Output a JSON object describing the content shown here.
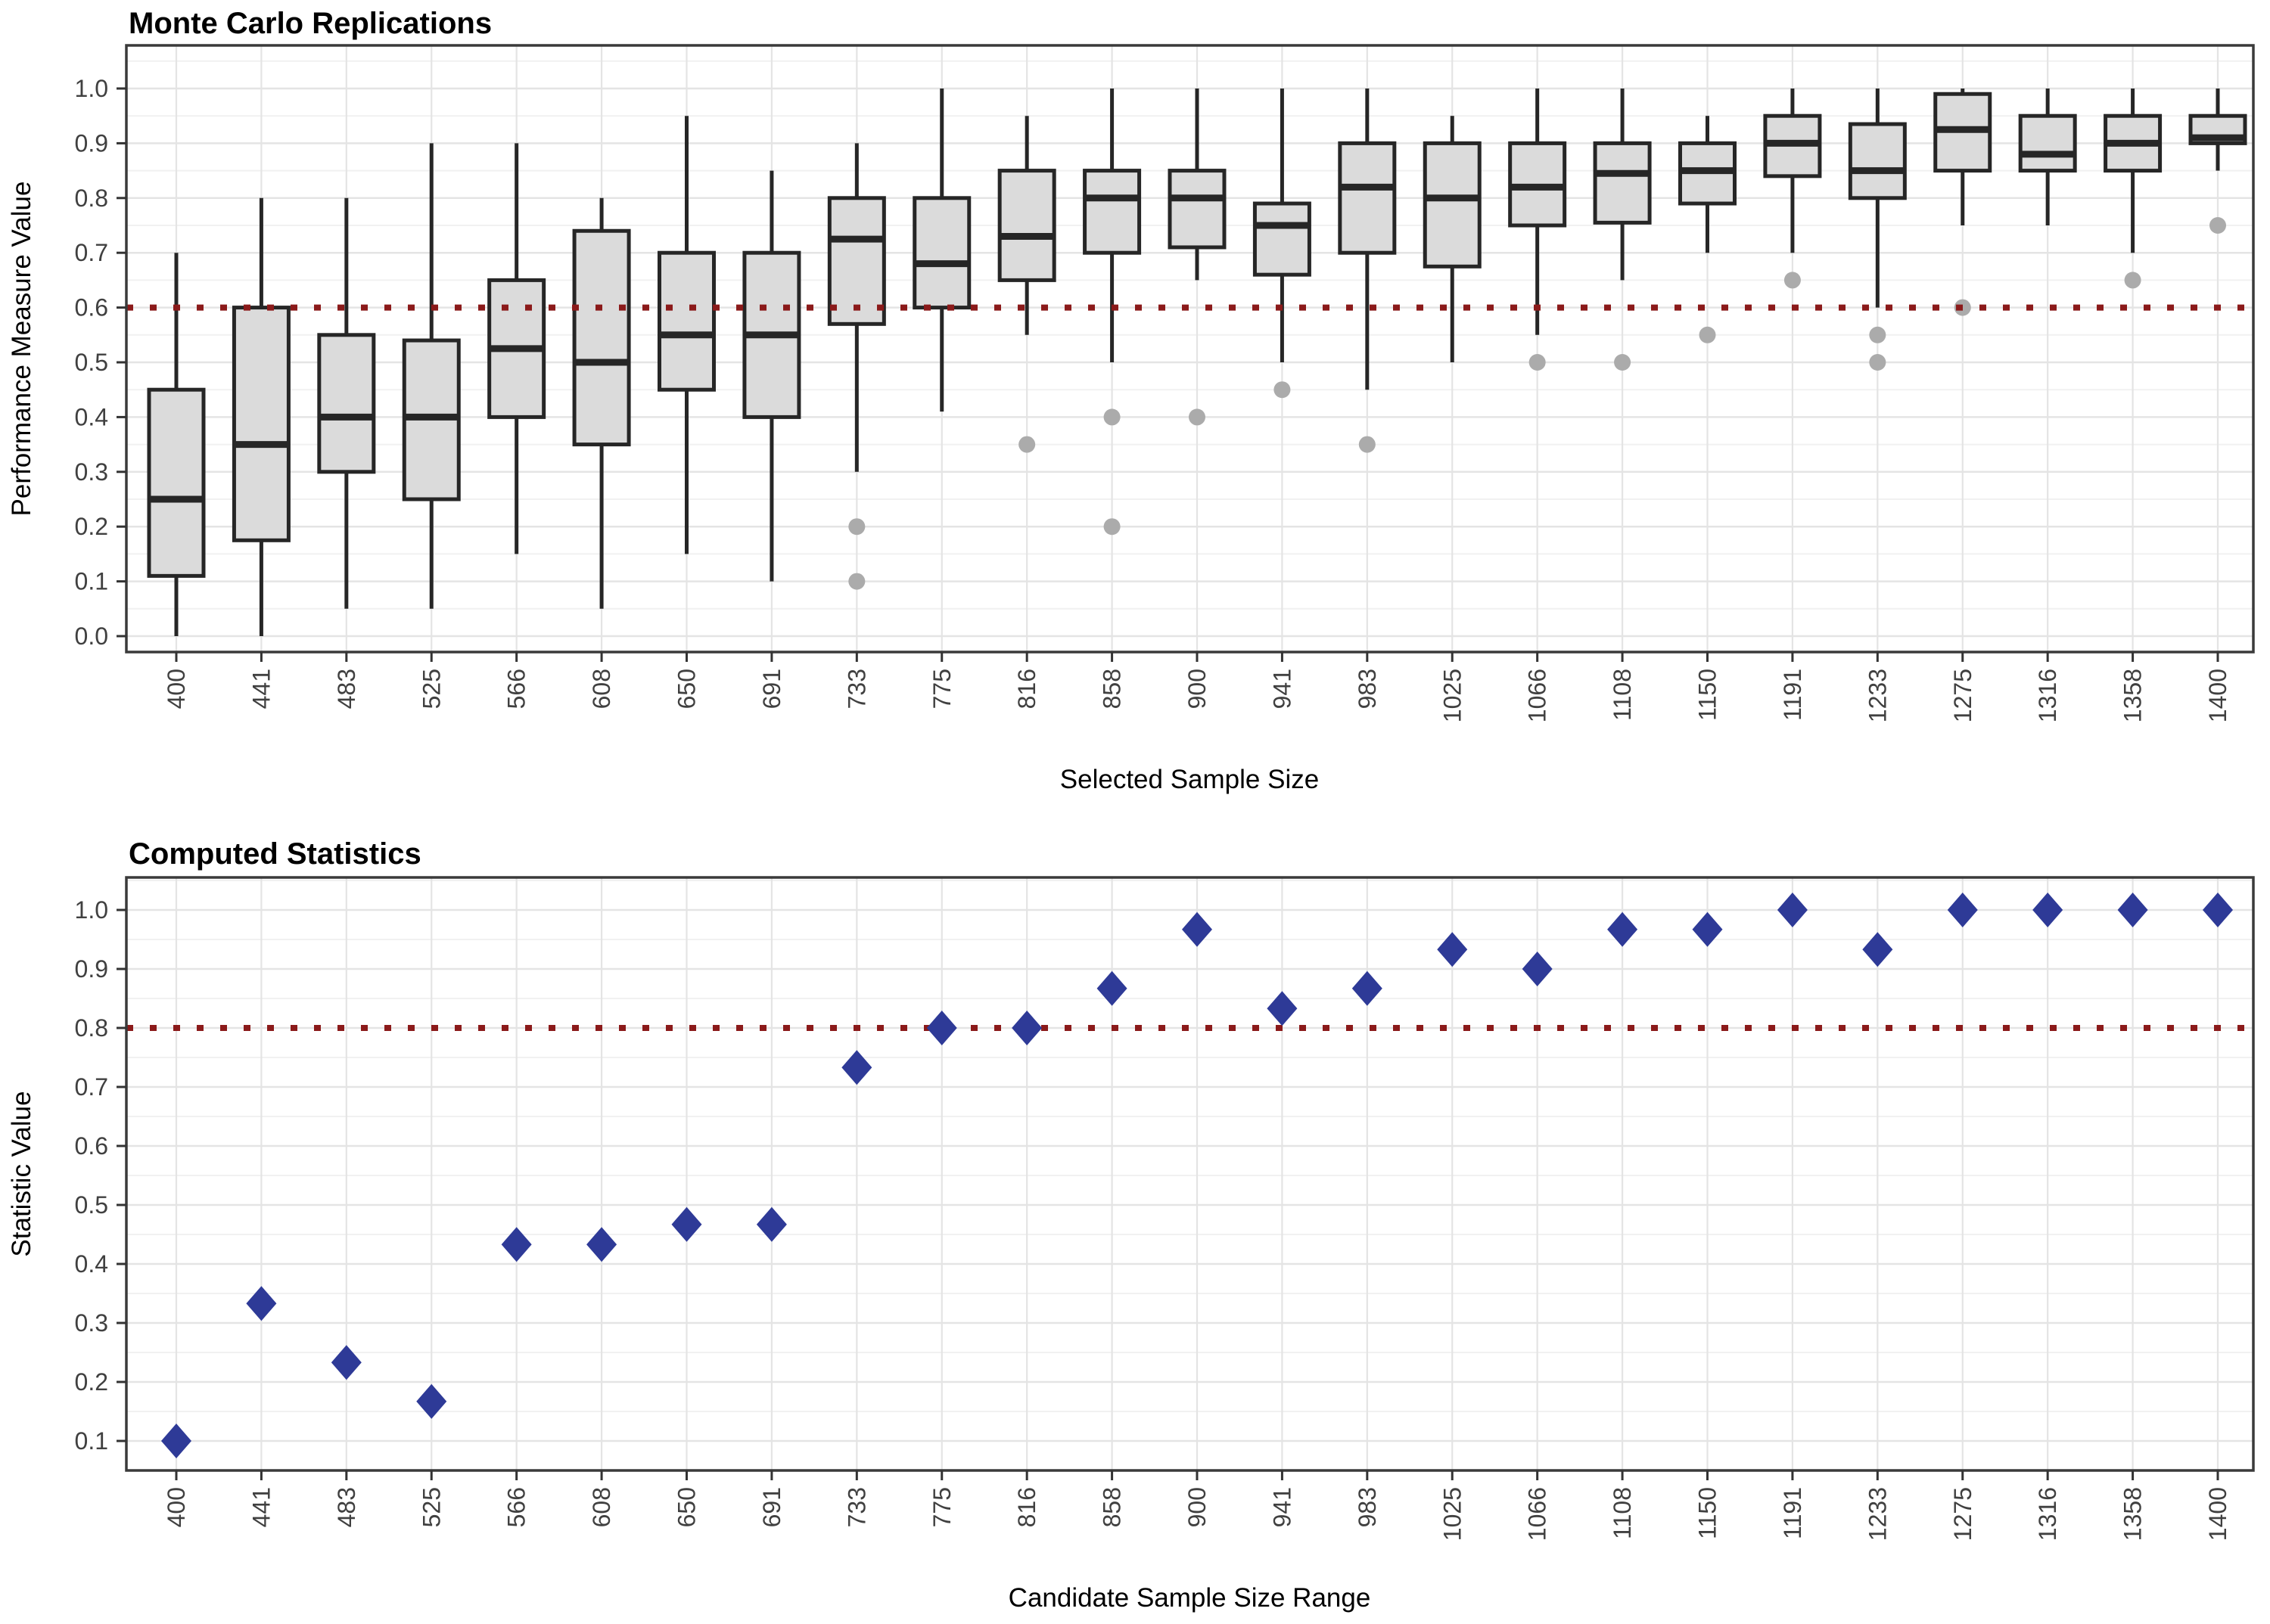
{
  "figure": {
    "top_panel": {
      "title": "Monte Carlo Replications",
      "xlabel": "Selected Sample Size",
      "ylabel": "Performance Measure Value"
    },
    "bottom_panel": {
      "title": "Computed Statistics",
      "xlabel": "Candidate Sample Size Range",
      "ylabel": "Statistic Value"
    }
  },
  "colors": {
    "box_fill": "#DBDBDB",
    "box_border": "#262626",
    "whisker": "#262626",
    "outlier": "#ABABAB",
    "diamond": "#2E3A97",
    "threshold": "#8B1A1A",
    "grid_major": "#E4E4E4",
    "grid_minor": "#F1F1F1",
    "panel_border": "#3A3A3A",
    "tick": "#333333"
  },
  "chart_data": [
    {
      "type": "boxplot",
      "title": "Monte Carlo Replications",
      "xlabel": "Selected Sample Size",
      "ylabel": "Performance Measure Value",
      "ylim": [
        0.0,
        1.0
      ],
      "yticks": [
        "0.0",
        "0.1",
        "0.2",
        "0.3",
        "0.4",
        "0.5",
        "0.6",
        "0.7",
        "0.8",
        "0.9",
        "1.0"
      ],
      "grid": "on",
      "threshold": 0.6,
      "threshold_style": "dotted-dark-red",
      "categories": [
        "400",
        "441",
        "483",
        "525",
        "566",
        "608",
        "650",
        "691",
        "733",
        "775",
        "816",
        "858",
        "900",
        "941",
        "983",
        "1025",
        "1066",
        "1108",
        "1150",
        "1191",
        "1233",
        "1275",
        "1316",
        "1358",
        "1400"
      ],
      "boxes": [
        {
          "whisker_low": 0.0,
          "q1": 0.11,
          "median": 0.25,
          "q3": 0.45,
          "whisker_high": 0.7,
          "outliers": []
        },
        {
          "whisker_low": 0.0,
          "q1": 0.175,
          "median": 0.35,
          "q3": 0.6,
          "whisker_high": 0.8,
          "outliers": []
        },
        {
          "whisker_low": 0.05,
          "q1": 0.3,
          "median": 0.4,
          "q3": 0.55,
          "whisker_high": 0.8,
          "outliers": []
        },
        {
          "whisker_low": 0.05,
          "q1": 0.25,
          "median": 0.4,
          "q3": 0.54,
          "whisker_high": 0.9,
          "outliers": []
        },
        {
          "whisker_low": 0.15,
          "q1": 0.4,
          "median": 0.525,
          "q3": 0.65,
          "whisker_high": 0.9,
          "outliers": []
        },
        {
          "whisker_low": 0.05,
          "q1": 0.35,
          "median": 0.5,
          "q3": 0.74,
          "whisker_high": 0.8,
          "outliers": []
        },
        {
          "whisker_low": 0.15,
          "q1": 0.45,
          "median": 0.55,
          "q3": 0.7,
          "whisker_high": 0.95,
          "outliers": []
        },
        {
          "whisker_low": 0.1,
          "q1": 0.4,
          "median": 0.55,
          "q3": 0.7,
          "whisker_high": 0.85,
          "outliers": []
        },
        {
          "whisker_low": 0.3,
          "q1": 0.57,
          "median": 0.725,
          "q3": 0.8,
          "whisker_high": 0.9,
          "outliers": [
            0.2,
            0.1
          ]
        },
        {
          "whisker_low": 0.41,
          "q1": 0.6,
          "median": 0.68,
          "q3": 0.8,
          "whisker_high": 1.0,
          "outliers": []
        },
        {
          "whisker_low": 0.55,
          "q1": 0.65,
          "median": 0.73,
          "q3": 0.85,
          "whisker_high": 0.95,
          "outliers": [
            0.35
          ]
        },
        {
          "whisker_low": 0.5,
          "q1": 0.7,
          "median": 0.8,
          "q3": 0.85,
          "whisker_high": 1.0,
          "outliers": [
            0.4,
            0.2
          ]
        },
        {
          "whisker_low": 0.65,
          "q1": 0.71,
          "median": 0.8,
          "q3": 0.85,
          "whisker_high": 1.0,
          "outliers": [
            0.4
          ]
        },
        {
          "whisker_low": 0.5,
          "q1": 0.66,
          "median": 0.75,
          "q3": 0.79,
          "whisker_high": 1.0,
          "outliers": [
            0.45
          ]
        },
        {
          "whisker_low": 0.45,
          "q1": 0.7,
          "median": 0.82,
          "q3": 0.9,
          "whisker_high": 1.0,
          "outliers": [
            0.35
          ]
        },
        {
          "whisker_low": 0.5,
          "q1": 0.675,
          "median": 0.8,
          "q3": 0.9,
          "whisker_high": 0.95,
          "outliers": []
        },
        {
          "whisker_low": 0.55,
          "q1": 0.75,
          "median": 0.82,
          "q3": 0.9,
          "whisker_high": 1.0,
          "outliers": [
            0.5
          ]
        },
        {
          "whisker_low": 0.65,
          "q1": 0.755,
          "median": 0.845,
          "q3": 0.9,
          "whisker_high": 1.0,
          "outliers": [
            0.5
          ]
        },
        {
          "whisker_low": 0.7,
          "q1": 0.79,
          "median": 0.85,
          "q3": 0.9,
          "whisker_high": 0.95,
          "outliers": [
            0.55
          ]
        },
        {
          "whisker_low": 0.7,
          "q1": 0.84,
          "median": 0.9,
          "q3": 0.95,
          "whisker_high": 1.0,
          "outliers": [
            0.65
          ]
        },
        {
          "whisker_low": 0.6,
          "q1": 0.8,
          "median": 0.85,
          "q3": 0.935,
          "whisker_high": 1.0,
          "outliers": [
            0.55,
            0.5
          ]
        },
        {
          "whisker_low": 0.75,
          "q1": 0.85,
          "median": 0.925,
          "q3": 0.99,
          "whisker_high": 1.0,
          "outliers": [
            0.6
          ]
        },
        {
          "whisker_low": 0.75,
          "q1": 0.85,
          "median": 0.88,
          "q3": 0.95,
          "whisker_high": 1.0,
          "outliers": []
        },
        {
          "whisker_low": 0.7,
          "q1": 0.85,
          "median": 0.9,
          "q3": 0.95,
          "whisker_high": 1.0,
          "outliers": [
            0.65
          ]
        },
        {
          "whisker_low": 0.85,
          "q1": 0.9,
          "median": 0.91,
          "q3": 0.95,
          "whisker_high": 1.0,
          "outliers": [
            0.75
          ]
        }
      ]
    },
    {
      "type": "scatter",
      "title": "Computed Statistics",
      "xlabel": "Candidate Sample Size Range",
      "ylabel": "Statistic Value",
      "ylim": [
        0.1,
        1.0
      ],
      "yticks": [
        "0.1",
        "0.2",
        "0.3",
        "0.4",
        "0.5",
        "0.6",
        "0.7",
        "0.8",
        "0.9",
        "1.0"
      ],
      "grid": "on",
      "threshold": 0.8,
      "threshold_style": "dotted-dark-red",
      "marker": "diamond",
      "categories": [
        "400",
        "441",
        "483",
        "525",
        "566",
        "608",
        "650",
        "691",
        "733",
        "775",
        "816",
        "858",
        "900",
        "941",
        "983",
        "1025",
        "1066",
        "1108",
        "1150",
        "1191",
        "1233",
        "1275",
        "1316",
        "1358",
        "1400"
      ],
      "values": [
        0.1,
        0.333,
        0.233,
        0.167,
        0.433,
        0.433,
        0.467,
        0.467,
        0.733,
        0.8,
        0.8,
        0.867,
        0.967,
        0.833,
        0.867,
        0.933,
        0.9,
        0.967,
        0.967,
        1.0,
        0.933,
        1.0,
        1.0,
        1.0,
        1.0
      ]
    }
  ]
}
